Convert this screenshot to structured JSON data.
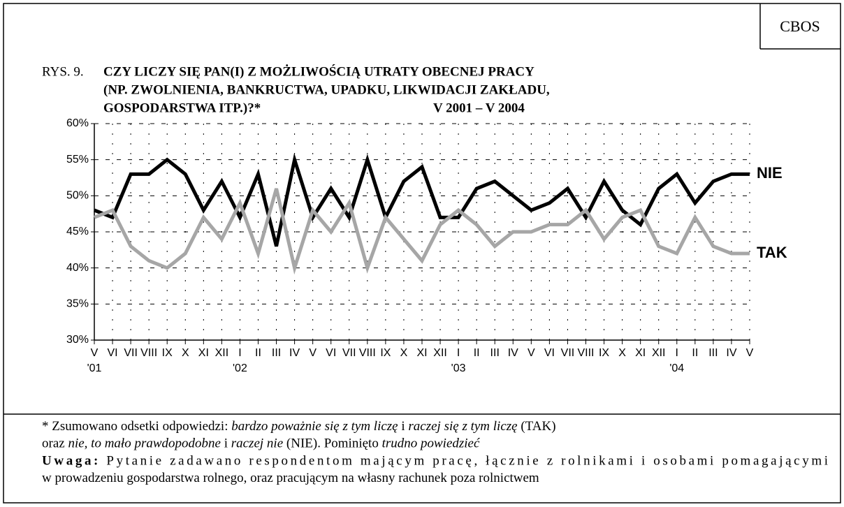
{
  "chart_data": {
    "type": "line",
    "source": "CBOS",
    "figure_label": "RYS. 9.",
    "title_lines": [
      "CZY LICZY SIĘ PAN(I) Z MOŻLIWOŚCIĄ UTRATY OBECNEJ PRACY",
      "(NP. ZWOLNIENIA, BANKRUCTWA, UPADKU, LIKWIDACJI ZAKŁADU,",
      "GOSPODARSTWA ITP.)?*"
    ],
    "period": "V 2001 – V 2004",
    "categories": [
      "V",
      "VI",
      "VII",
      "VIII",
      "IX",
      "X",
      "XI",
      "XII",
      "I",
      "II",
      "III",
      "IV",
      "V",
      "VI",
      "VII",
      "VIII",
      "IX",
      "X",
      "XI",
      "XII",
      "I",
      "II",
      "III",
      "IV",
      "V",
      "VI",
      "VII",
      "VIII",
      "IX",
      "X",
      "XI",
      "XII",
      "I",
      "II",
      "III",
      "IV",
      "V"
    ],
    "year_labels": [
      "'01",
      null,
      null,
      null,
      null,
      null,
      null,
      null,
      "'02",
      null,
      null,
      null,
      null,
      null,
      null,
      null,
      null,
      null,
      null,
      null,
      "'03",
      null,
      null,
      null,
      null,
      null,
      null,
      null,
      null,
      null,
      null,
      null,
      "'04",
      null,
      null,
      null,
      null
    ],
    "series": [
      {
        "name": "NIE",
        "color": "#000000",
        "values": [
          48,
          47,
          53,
          53,
          55,
          53,
          48,
          52,
          47,
          53,
          43,
          55,
          47,
          51,
          47,
          55,
          47,
          52,
          54,
          47,
          47,
          51,
          52,
          50,
          48,
          49,
          51,
          47,
          52,
          48,
          46,
          51,
          53,
          49,
          52,
          53,
          53
        ]
      },
      {
        "name": "TAK",
        "color": "#a6a6a6",
        "values": [
          47,
          48,
          43,
          41,
          40,
          42,
          47,
          44,
          49,
          42,
          51,
          40,
          48,
          45,
          49,
          40,
          47,
          44,
          41,
          46,
          48,
          46,
          43,
          45,
          45,
          46,
          46,
          48,
          44,
          47,
          48,
          43,
          42,
          47,
          43,
          42,
          42
        ]
      }
    ],
    "ylim": [
      30,
      60
    ],
    "yticks": [
      {
        "value": 30,
        "label": "30%"
      },
      {
        "value": 35,
        "label": "35%"
      },
      {
        "value": 40,
        "label": "40%"
      },
      {
        "value": 45,
        "label": "45%"
      },
      {
        "value": 50,
        "label": "50%"
      },
      {
        "value": 55,
        "label": "55%"
      },
      {
        "value": 60,
        "label": "60%"
      }
    ],
    "grid": true,
    "footnote": [
      [
        {
          "text": "* Zsumowano odsetki odpowiedzi: "
        },
        {
          "text": "bardzo poważnie się z tym liczę",
          "italic": true
        },
        {
          "text": " i "
        },
        {
          "text": "raczej się z tym liczę",
          "italic": true
        },
        {
          "text": " (TAK)"
        }
      ],
      [
        {
          "text": "oraz "
        },
        {
          "text": "nie, to mało prawdopodobne",
          "italic": true
        },
        {
          "text": " i "
        },
        {
          "text": "raczej nie",
          "italic": true
        },
        {
          "text": " (NIE). Pominięto "
        },
        {
          "text": "trudno powiedzieć",
          "italic": true
        }
      ],
      [
        {
          "text": "Uwaga:",
          "bold": true
        },
        {
          "text": " Pytanie zadawano respondentom mającym pracę, łącznie z rolnikami i osobami pomagającymi"
        }
      ],
      [
        {
          "text": "w prowadzeniu gospodarstwa rolnego, oraz pracującym na własny rachunek poza rolnictwem"
        }
      ]
    ]
  }
}
